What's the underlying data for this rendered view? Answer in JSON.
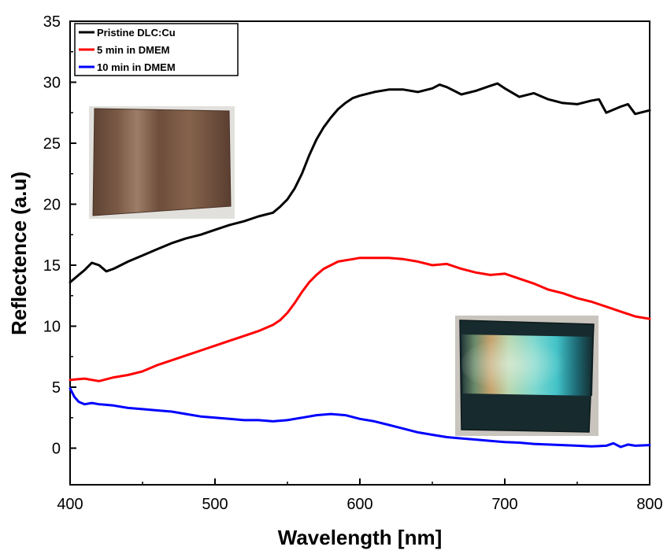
{
  "chart_data": {
    "type": "line",
    "title": "",
    "xlabel": "Wavelength [nm]",
    "ylabel": "Reflectence (a.u)",
    "xlim": [
      400,
      800
    ],
    "ylim": [
      -3,
      35
    ],
    "xticks": [
      400,
      500,
      600,
      700,
      800
    ],
    "yticks": [
      0,
      5,
      10,
      15,
      20,
      25,
      30,
      35
    ],
    "grid": false,
    "legend_position": "top-left",
    "series": [
      {
        "name": "Pristine DLC:Cu",
        "color": "#000000",
        "x": [
          400,
          405,
          410,
          415,
          420,
          425,
          430,
          440,
          450,
          460,
          470,
          480,
          490,
          500,
          510,
          520,
          530,
          540,
          545,
          550,
          555,
          560,
          565,
          570,
          575,
          580,
          585,
          590,
          595,
          600,
          610,
          620,
          630,
          640,
          650,
          655,
          660,
          670,
          680,
          690,
          695,
          700,
          710,
          720,
          730,
          740,
          750,
          760,
          765,
          770,
          780,
          785,
          790,
          800
        ],
        "y": [
          13.6,
          14.1,
          14.6,
          15.2,
          15.0,
          14.5,
          14.7,
          15.3,
          15.8,
          16.3,
          16.8,
          17.2,
          17.5,
          17.9,
          18.3,
          18.6,
          19.0,
          19.3,
          19.8,
          20.4,
          21.3,
          22.5,
          24.0,
          25.3,
          26.3,
          27.1,
          27.8,
          28.3,
          28.7,
          28.9,
          29.2,
          29.4,
          29.4,
          29.2,
          29.5,
          29.8,
          29.6,
          29.0,
          29.3,
          29.7,
          29.9,
          29.5,
          28.8,
          29.1,
          28.6,
          28.3,
          28.2,
          28.5,
          28.6,
          27.5,
          28.0,
          28.2,
          27.4,
          27.7
        ]
      },
      {
        "name": "5 min in DMEM",
        "color": "#ff0000",
        "x": [
          400,
          410,
          420,
          430,
          440,
          450,
          460,
          470,
          480,
          490,
          500,
          510,
          520,
          530,
          540,
          545,
          550,
          555,
          560,
          565,
          570,
          575,
          580,
          585,
          590,
          595,
          600,
          610,
          620,
          630,
          640,
          650,
          660,
          670,
          680,
          690,
          700,
          710,
          720,
          730,
          740,
          750,
          760,
          770,
          780,
          790,
          800
        ],
        "y": [
          5.6,
          5.7,
          5.5,
          5.8,
          6.0,
          6.3,
          6.8,
          7.2,
          7.6,
          8.0,
          8.4,
          8.8,
          9.2,
          9.6,
          10.1,
          10.5,
          11.1,
          11.9,
          12.8,
          13.6,
          14.2,
          14.7,
          15.0,
          15.3,
          15.4,
          15.5,
          15.6,
          15.6,
          15.6,
          15.5,
          15.3,
          15.0,
          15.1,
          14.7,
          14.4,
          14.2,
          14.3,
          13.9,
          13.5,
          13.0,
          12.7,
          12.3,
          12.0,
          11.6,
          11.2,
          10.8,
          10.6
        ]
      },
      {
        "name": "10 min in DMEM",
        "color": "#0000ff",
        "x": [
          400,
          403,
          406,
          410,
          415,
          420,
          430,
          440,
          450,
          460,
          470,
          480,
          490,
          500,
          510,
          520,
          530,
          540,
          550,
          560,
          570,
          580,
          590,
          600,
          610,
          620,
          630,
          640,
          650,
          660,
          670,
          680,
          690,
          700,
          710,
          720,
          730,
          740,
          750,
          760,
          770,
          775,
          780,
          785,
          790,
          800
        ],
        "y": [
          4.9,
          4.2,
          3.8,
          3.6,
          3.7,
          3.6,
          3.5,
          3.3,
          3.2,
          3.1,
          3.0,
          2.8,
          2.6,
          2.5,
          2.4,
          2.3,
          2.3,
          2.2,
          2.3,
          2.5,
          2.7,
          2.8,
          2.7,
          2.4,
          2.2,
          1.9,
          1.6,
          1.3,
          1.1,
          0.9,
          0.8,
          0.7,
          0.6,
          0.5,
          0.45,
          0.35,
          0.3,
          0.25,
          0.2,
          0.15,
          0.2,
          0.4,
          0.1,
          0.3,
          0.2,
          0.25
        ]
      }
    ]
  },
  "insets": {
    "top_left_sample": "copper-brown-film-photo",
    "bottom_right_sample": "iridescent-dark-film-photo"
  }
}
